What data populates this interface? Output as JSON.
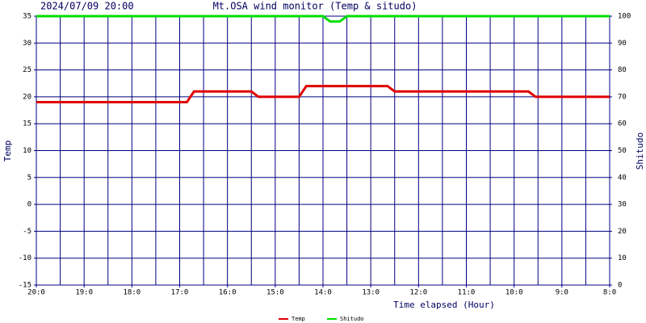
{
  "chart_data": {
    "type": "line",
    "date": "2024/07/09 20:00",
    "title": "Mt.OSA wind monitor (Temp & situdo)",
    "x_label": "Time elapsed (Hour)",
    "y_label": "Temp",
    "y2_label": "Shitudo",
    "xlim": [
      0,
      12
    ],
    "xticks": [
      {
        "value": 0,
        "label": "20:0"
      },
      {
        "value": 1,
        "label": "19:0"
      },
      {
        "value": 2,
        "label": "18:0"
      },
      {
        "value": 3,
        "label": "17:0"
      },
      {
        "value": 4,
        "label": "16:0"
      },
      {
        "value": 5,
        "label": "15:0"
      },
      {
        "value": 6,
        "label": "14:0"
      },
      {
        "value": 7,
        "label": "13:0"
      },
      {
        "value": 8,
        "label": "12:0"
      },
      {
        "value": 9,
        "label": "11:0"
      },
      {
        "value": 10,
        "label": "10:0"
      },
      {
        "value": 11,
        "label": "9:0"
      },
      {
        "value": 12,
        "label": "8:0"
      }
    ],
    "ylim": [
      -15,
      35
    ],
    "yticks": [
      -15,
      -10,
      -5,
      0,
      5,
      10,
      15,
      20,
      25,
      30,
      35
    ],
    "y2lim": [
      0,
      100
    ],
    "y2ticks": [
      0,
      10,
      20,
      30,
      40,
      50,
      60,
      70,
      80,
      90,
      100
    ],
    "grid": true,
    "grid_color": "#000080",
    "series": [
      {
        "name": "Temp",
        "color": "#e00000",
        "x": [
          0,
          3.15,
          3.3,
          4.5,
          4.65,
          5.5,
          5.65,
          7.35,
          7.5,
          10.3,
          10.45,
          12
        ],
        "values": [
          19,
          19,
          21,
          21,
          20,
          20,
          22,
          22,
          21,
          21,
          20,
          20
        ]
      },
      {
        "name": "Shitudo",
        "color": "#00e000",
        "axis": "y2",
        "x": [
          0,
          6.0,
          6.15,
          6.35,
          6.5,
          12
        ],
        "values": [
          100,
          100,
          98,
          98,
          100,
          100
        ]
      }
    ]
  }
}
